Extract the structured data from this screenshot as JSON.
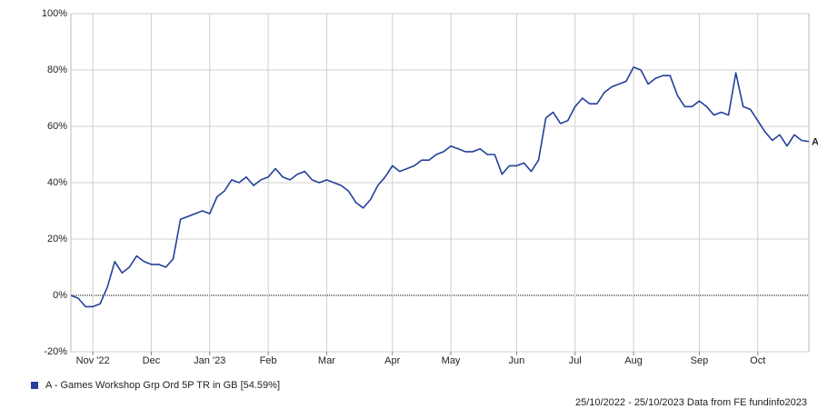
{
  "chart_data": {
    "type": "line",
    "categories": [
      null,
      null,
      null,
      "Nov '22",
      null,
      null,
      null,
      null,
      null,
      null,
      null,
      "Dec",
      null,
      null,
      null,
      null,
      null,
      null,
      null,
      "Jan '23",
      null,
      null,
      null,
      null,
      null,
      null,
      null,
      "Feb",
      null,
      null,
      null,
      null,
      null,
      null,
      null,
      "Mar",
      null,
      null,
      null,
      null,
      null,
      null,
      null,
      null,
      "Apr",
      null,
      null,
      null,
      null,
      null,
      null,
      null,
      "May",
      null,
      null,
      null,
      null,
      null,
      null,
      null,
      null,
      "Jun",
      null,
      null,
      null,
      null,
      null,
      null,
      null,
      "Jul",
      null,
      null,
      null,
      null,
      null,
      null,
      null,
      "Aug",
      null,
      null,
      null,
      null,
      null,
      null,
      null,
      null,
      "Sep",
      null,
      null,
      null,
      null,
      null,
      null,
      null,
      "Oct",
      null,
      null,
      null,
      null,
      null,
      null,
      null
    ],
    "series": [
      {
        "name": "A - Games Workshop Grp Ord 5P TR in GB [54.59%]",
        "color": "#233f99",
        "values": [
          0,
          -1,
          -4,
          -4,
          -3,
          3,
          12,
          8,
          10,
          14,
          12,
          11,
          11,
          10,
          13,
          27,
          28,
          29,
          30,
          29,
          35,
          37,
          41,
          40,
          42,
          39,
          41,
          42,
          45,
          42,
          41,
          43,
          44,
          41,
          40,
          41,
          40,
          39,
          37,
          33,
          31,
          34,
          39,
          42,
          46,
          44,
          45,
          46,
          48,
          48,
          50,
          51,
          53,
          52,
          51,
          51,
          52,
          50,
          50,
          43,
          46,
          46,
          47,
          44,
          48,
          63,
          65,
          61,
          62,
          67,
          70,
          68,
          68,
          72,
          74,
          75,
          76,
          81,
          80,
          75,
          77,
          78,
          78,
          71,
          67,
          67,
          69,
          67,
          64,
          65,
          64,
          79,
          67,
          66,
          62,
          58,
          55,
          57,
          53,
          57,
          55,
          54.59
        ]
      }
    ],
    "end_label": "A",
    "ylim": [
      -20,
      100
    ],
    "yticks": [
      {
        "value": -20,
        "label": "-20%"
      },
      {
        "value": 0,
        "label": "0%"
      },
      {
        "value": 20,
        "label": "20%"
      },
      {
        "value": 40,
        "label": "40%"
      },
      {
        "value": 60,
        "label": "60%"
      },
      {
        "value": 80,
        "label": "80%"
      },
      {
        "value": 100,
        "label": "100%"
      }
    ],
    "grid": true,
    "footer": "25/10/2022 - 25/10/2023 Data from FE fundinfo2023"
  }
}
